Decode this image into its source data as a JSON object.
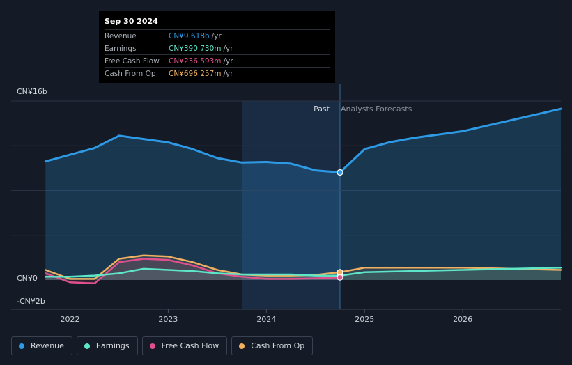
{
  "tooltip": {
    "date": "Sep 30 2024",
    "rows": [
      {
        "label": "Revenue",
        "value": "CN¥9.618b",
        "unit": "/yr",
        "color": "#2e9ae6"
      },
      {
        "label": "Earnings",
        "value": "CN¥390.730m",
        "unit": "/yr",
        "color": "#5ee6c8"
      },
      {
        "label": "Free Cash Flow",
        "value": "CN¥236.593m",
        "unit": "/yr",
        "color": "#e0508c"
      },
      {
        "label": "Cash From Op",
        "value": "CN¥696.257m",
        "unit": "/yr",
        "color": "#f0b060"
      }
    ]
  },
  "chart_data": {
    "type": "line",
    "y_unit_labels": {
      "top": "CN¥16b",
      "zero": "CN¥0",
      "bottom": "-CN¥2b"
    },
    "ylim": [
      -2,
      16
    ],
    "x_ticks": [
      "2022",
      "2023",
      "2024",
      "2025",
      "2026"
    ],
    "x_tick_values": [
      2022.0,
      2023.0,
      2024.0,
      2025.0,
      2026.0
    ],
    "xlim": [
      2021.4,
      2027.0
    ],
    "divider_x": 2024.75,
    "highlight_start": 2023.75,
    "past_label": "Past",
    "forecast_label": "Analysts Forecasts",
    "series": [
      {
        "name": "Revenue",
        "color": "#2e9ae6",
        "points": [
          [
            2021.75,
            10.6
          ],
          [
            2022.0,
            11.2
          ],
          [
            2022.25,
            11.8
          ],
          [
            2022.5,
            12.9
          ],
          [
            2022.75,
            12.6
          ],
          [
            2023.0,
            12.3
          ],
          [
            2023.25,
            11.7
          ],
          [
            2023.5,
            10.9
          ],
          [
            2023.75,
            10.5
          ],
          [
            2024.0,
            10.55
          ],
          [
            2024.25,
            10.4
          ],
          [
            2024.5,
            9.8
          ],
          [
            2024.75,
            9.618
          ],
          [
            2025.0,
            11.7
          ],
          [
            2025.25,
            12.3
          ],
          [
            2025.5,
            12.7
          ],
          [
            2025.75,
            13.0
          ],
          [
            2026.0,
            13.3
          ],
          [
            2026.25,
            13.8
          ],
          [
            2026.5,
            14.3
          ],
          [
            2026.75,
            14.8
          ],
          [
            2027.0,
            15.3
          ]
        ]
      },
      {
        "name": "Earnings",
        "color": "#5ee6c8",
        "points": [
          [
            2021.75,
            0.3
          ],
          [
            2022.0,
            0.3
          ],
          [
            2022.25,
            0.4
          ],
          [
            2022.5,
            0.6
          ],
          [
            2022.75,
            1.0
          ],
          [
            2023.0,
            0.9
          ],
          [
            2023.25,
            0.8
          ],
          [
            2023.5,
            0.6
          ],
          [
            2023.75,
            0.5
          ],
          [
            2024.0,
            0.5
          ],
          [
            2024.25,
            0.5
          ],
          [
            2024.5,
            0.4
          ],
          [
            2024.75,
            0.39
          ],
          [
            2025.0,
            0.7
          ],
          [
            2025.5,
            0.8
          ],
          [
            2026.0,
            0.9
          ],
          [
            2026.5,
            1.0
          ],
          [
            2027.0,
            1.1
          ]
        ]
      },
      {
        "name": "Free Cash Flow",
        "color": "#e0508c",
        "points": [
          [
            2021.75,
            0.6
          ],
          [
            2022.0,
            -0.2
          ],
          [
            2022.25,
            -0.3
          ],
          [
            2022.5,
            1.6
          ],
          [
            2022.75,
            1.9
          ],
          [
            2023.0,
            1.8
          ],
          [
            2023.25,
            1.3
          ],
          [
            2023.5,
            0.6
          ],
          [
            2023.75,
            0.3
          ],
          [
            2024.0,
            0.1
          ],
          [
            2024.25,
            0.1
          ],
          [
            2024.5,
            0.15
          ],
          [
            2024.75,
            0.237
          ]
        ]
      },
      {
        "name": "Cash From Op",
        "color": "#f0b060",
        "points": [
          [
            2021.75,
            0.9
          ],
          [
            2022.0,
            0.1
          ],
          [
            2022.25,
            0.1
          ],
          [
            2022.5,
            1.9
          ],
          [
            2022.75,
            2.2
          ],
          [
            2023.0,
            2.1
          ],
          [
            2023.25,
            1.6
          ],
          [
            2023.5,
            0.9
          ],
          [
            2023.75,
            0.5
          ],
          [
            2024.0,
            0.4
          ],
          [
            2024.25,
            0.4
          ],
          [
            2024.5,
            0.45
          ],
          [
            2024.75,
            0.696
          ],
          [
            2025.0,
            1.1
          ],
          [
            2025.5,
            1.1
          ],
          [
            2026.0,
            1.1
          ],
          [
            2026.5,
            1.0
          ],
          [
            2027.0,
            0.9
          ]
        ]
      }
    ]
  },
  "legend": [
    {
      "label": "Revenue",
      "color": "#2e9ae6"
    },
    {
      "label": "Earnings",
      "color": "#5ee6c8"
    },
    {
      "label": "Free Cash Flow",
      "color": "#e0508c"
    },
    {
      "label": "Cash From Op",
      "color": "#f0b060"
    }
  ]
}
